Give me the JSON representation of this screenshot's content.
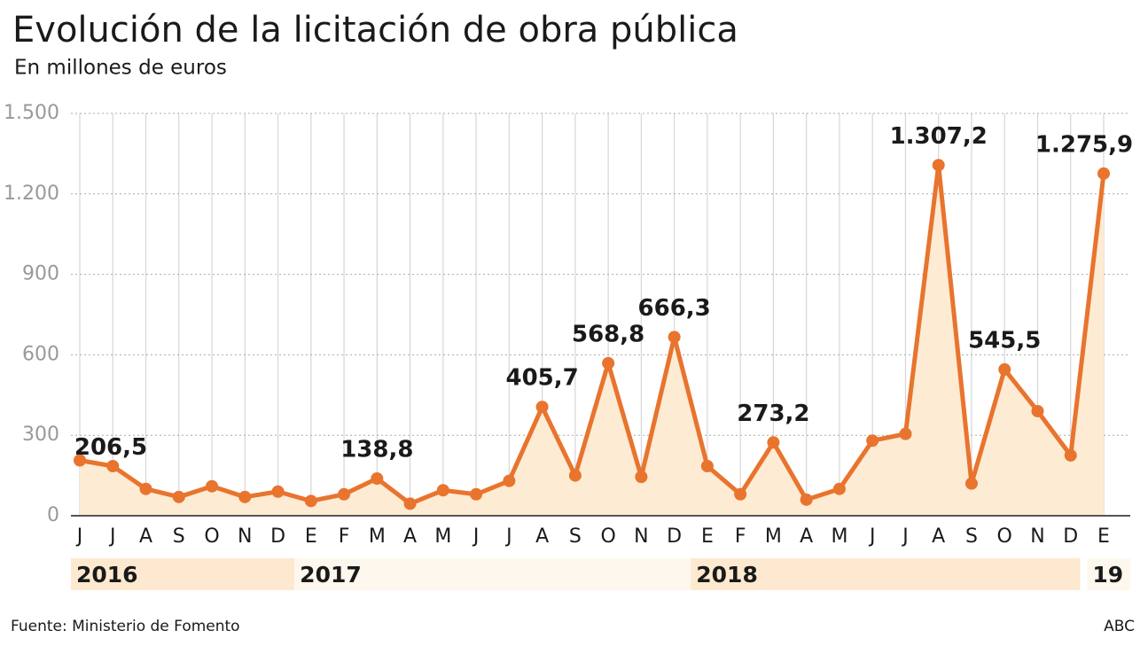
{
  "chart_data": {
    "type": "line",
    "title": "Evolución de la licitación de obra pública",
    "subtitle": "En millones de euros",
    "source": "Fuente: Ministerio de Fomento",
    "credit": "ABC",
    "categories": [
      "J",
      "J",
      "A",
      "S",
      "O",
      "N",
      "D",
      "E",
      "F",
      "M",
      "A",
      "M",
      "J",
      "J",
      "A",
      "S",
      "O",
      "N",
      "D",
      "E",
      "F",
      "M",
      "A",
      "M",
      "J",
      "J",
      "A",
      "S",
      "O",
      "N",
      "D",
      "E"
    ],
    "years": [
      {
        "label": "2016",
        "first": 0
      },
      {
        "label": "2017",
        "first": 7
      },
      {
        "label": "2018",
        "first": 19
      },
      {
        "label": "19",
        "first": 31
      }
    ],
    "values": [
      206.5,
      185,
      100,
      70,
      110,
      70,
      90,
      55,
      80,
      138.8,
      45,
      95,
      80,
      130,
      405.7,
      150,
      568.8,
      145,
      666.3,
      185,
      80,
      273.2,
      60,
      100,
      280,
      305,
      1307.2,
      120,
      545.5,
      390,
      225,
      1275.9
    ],
    "value_labels": [
      "206,5",
      null,
      null,
      null,
      null,
      null,
      null,
      null,
      null,
      "138,8",
      null,
      null,
      null,
      null,
      "405,7",
      null,
      "568,8",
      null,
      "666,3",
      null,
      null,
      "273,2",
      null,
      null,
      null,
      null,
      "1.307,2",
      null,
      "545,5",
      null,
      null,
      "1.275,9"
    ],
    "color": "#e8742e",
    "area_color": "#fdebd3",
    "ylim": [
      0,
      1500
    ],
    "yticks": [
      0,
      300,
      600,
      900,
      {
        "value": 1200,
        "label": "1.200"
      },
      {
        "value": 1500,
        "label": "1.500"
      }
    ],
    "grid": true
  }
}
